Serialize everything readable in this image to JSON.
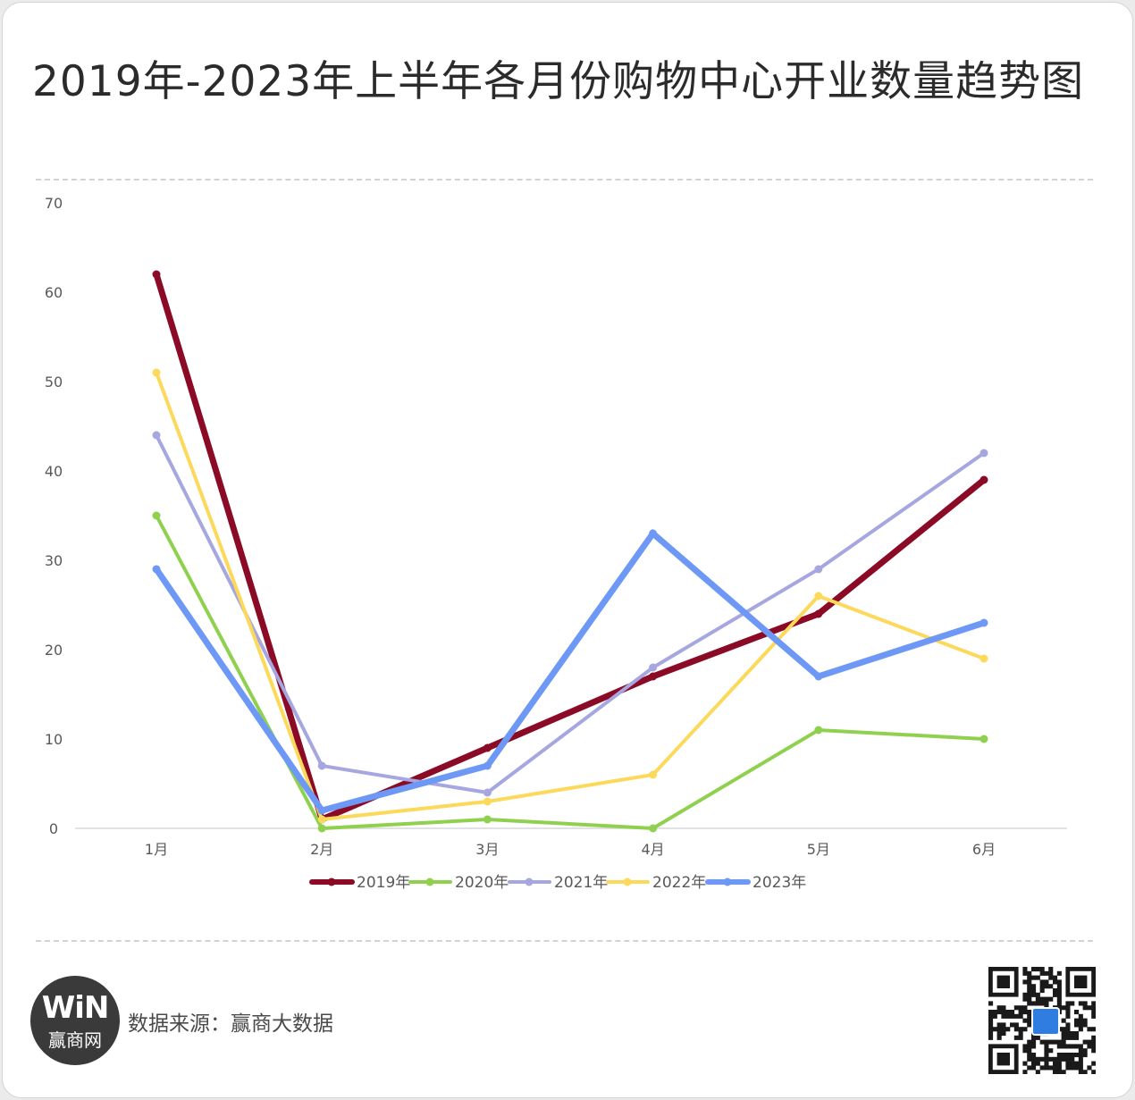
{
  "title": "2019年-2023年上半年各月份购物中心开业数量趋势图",
  "footer": {
    "logo_mark": "WiN",
    "logo_name": "赢商网",
    "source": "数据来源：赢商大数据"
  },
  "chart_data": {
    "type": "line",
    "categories": [
      "1月",
      "2月",
      "3月",
      "4月",
      "5月",
      "6月"
    ],
    "ylim": [
      0,
      70
    ],
    "yticks": [
      0,
      10,
      20,
      30,
      40,
      50,
      60,
      70
    ],
    "grid": false,
    "legend_position": "bottom",
    "series": [
      {
        "name": "2019年",
        "color": "#8b0a26",
        "values": [
          62,
          1,
          9,
          17,
          24,
          39
        ]
      },
      {
        "name": "2020年",
        "color": "#8fd14f",
        "values": [
          35,
          0,
          1,
          0,
          11,
          10
        ]
      },
      {
        "name": "2021年",
        "color": "#a6a6e0",
        "values": [
          44,
          7,
          4,
          18,
          29,
          42
        ]
      },
      {
        "name": "2022年",
        "color": "#fcd95a",
        "values": [
          51,
          1,
          3,
          6,
          26,
          19
        ]
      },
      {
        "name": "2023年",
        "color": "#6e98f5",
        "values": [
          29,
          2,
          7,
          33,
          17,
          23
        ]
      }
    ]
  }
}
